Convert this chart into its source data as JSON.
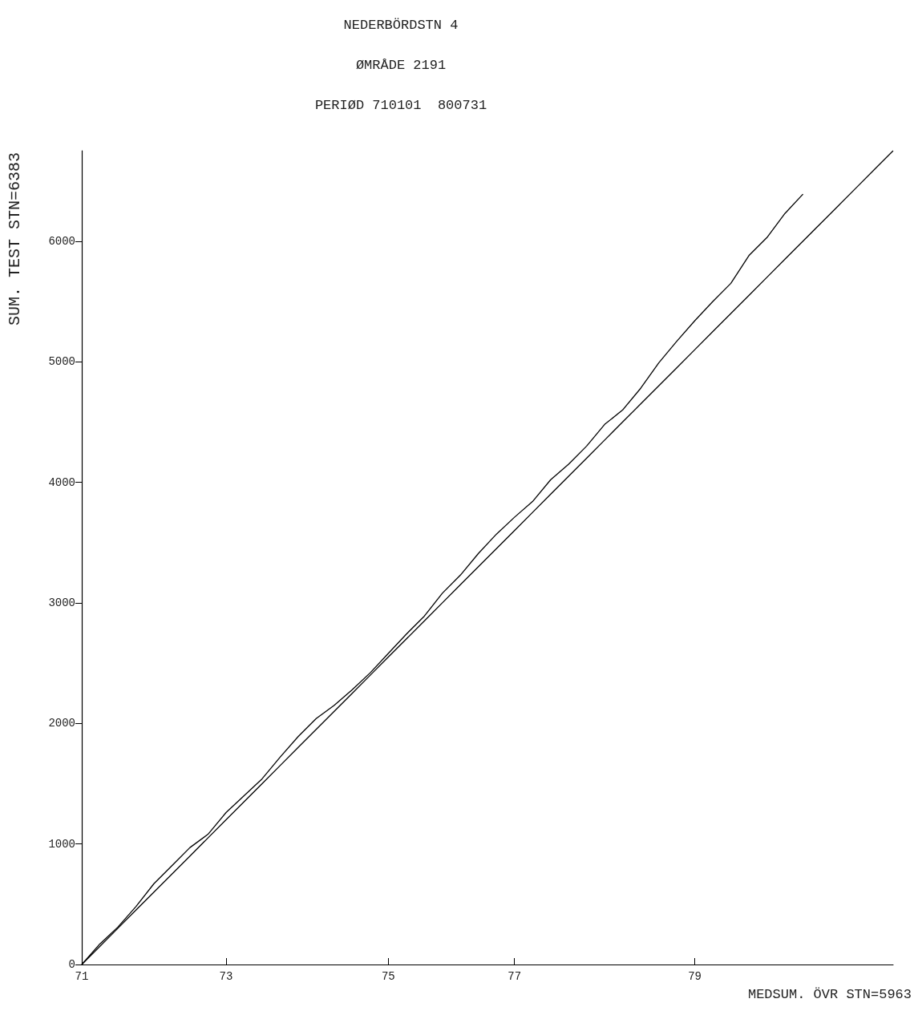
{
  "chart_data": {
    "type": "line",
    "title": "NEDERBÖRDSTN 4",
    "subtitle": "ØMRÅDE 2191\nPERIØD 710101  800731",
    "xlabel": "MEDSUM. ÖVR STN=5963",
    "ylabel": "SUM. TEST STN=6383",
    "categories": [
      "71",
      null,
      null,
      null,
      null,
      null,
      null,
      null,
      "73",
      null,
      null,
      null,
      null,
      null,
      null,
      null,
      null,
      "75",
      null,
      null,
      null,
      null,
      null,
      null,
      "77",
      null,
      null,
      null,
      null,
      null,
      null,
      null,
      null,
      null,
      "79",
      null,
      null,
      null,
      null,
      null,
      null,
      null,
      null,
      null,
      null,
      null
    ],
    "ylim": [
      0,
      6750
    ],
    "yticks": [
      0,
      1000,
      2000,
      3000,
      4000,
      5000,
      6000
    ],
    "grid": false,
    "marker": "none",
    "line_style": "solid",
    "series": [
      {
        "color": "#000000",
        "values": [
          0,
          170,
          310,
          480,
          670,
          820,
          970,
          1080,
          1260,
          1400,
          1540,
          1720,
          1890,
          2040,
          2150,
          2280,
          2420,
          2580,
          2740,
          2890,
          3080,
          3230,
          3410,
          3570,
          3710,
          3840,
          4020,
          4150,
          4300,
          4480,
          4600,
          4780,
          4990,
          5170,
          5340,
          5500,
          5650,
          5880,
          6030,
          6230,
          6390,
          null,
          null,
          null,
          null,
          null
        ]
      },
      {
        "color": "#000000",
        "values": [
          0,
          150,
          300,
          450,
          600,
          750,
          900,
          1050,
          1200,
          1350,
          1500,
          1650,
          1800,
          1950,
          2100,
          2250,
          2400,
          2550,
          2700,
          2850,
          3000,
          3150,
          3300,
          3450,
          3600,
          3750,
          3900,
          4050,
          4200,
          4350,
          4500,
          4650,
          4800,
          4950,
          5100,
          5250,
          5400,
          5550,
          5700,
          5850,
          6000,
          6150,
          6300,
          6450,
          6600,
          6750
        ]
      }
    ]
  }
}
